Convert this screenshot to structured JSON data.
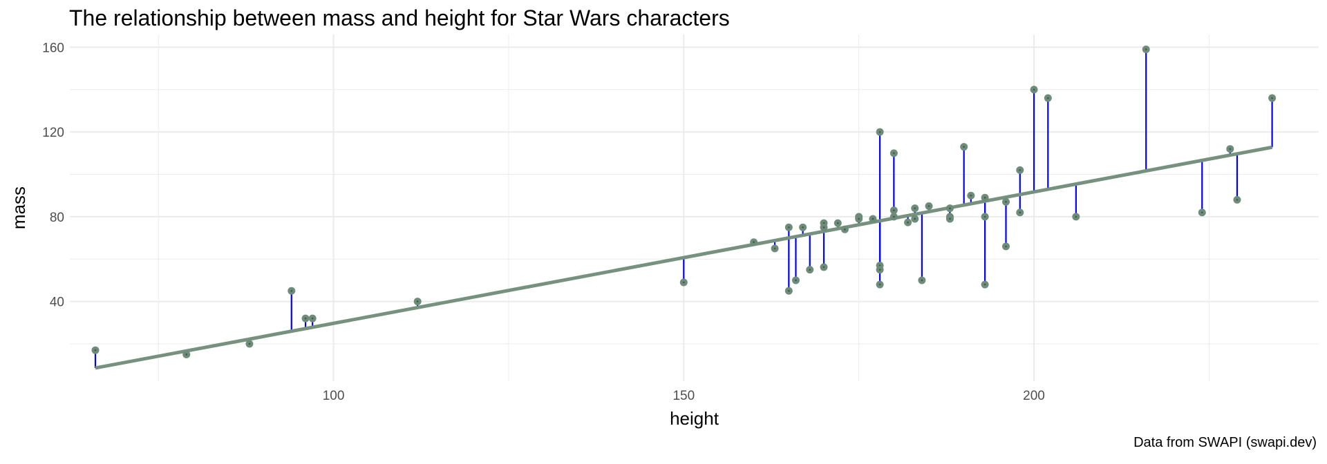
{
  "chart_data": {
    "type": "scatter",
    "title": "The relationship between mass and height for Star Wars characters",
    "caption": "Data from SWAPI (swapi.dev)",
    "xlabel": "height",
    "ylabel": "mass",
    "xlim": [
      62.35,
      240.65
    ],
    "ylim": [
      2.4,
      166
    ],
    "x_ticks": [
      100,
      150,
      200
    ],
    "y_ticks": [
      40,
      80,
      120,
      160
    ],
    "grid": true,
    "colors": {
      "point": "#6e8c7a",
      "point_center": "#4a5a50",
      "fit_line": "#76927f",
      "residual": "#0000ff"
    },
    "fit_line": {
      "x": [
        66,
        234
      ],
      "y": [
        8.6,
        112.8
      ]
    },
    "points": [
      {
        "x": 66,
        "y": 17
      },
      {
        "x": 79,
        "y": 15
      },
      {
        "x": 88,
        "y": 20
      },
      {
        "x": 94,
        "y": 45
      },
      {
        "x": 96,
        "y": 32
      },
      {
        "x": 97,
        "y": 32
      },
      {
        "x": 112,
        "y": 40
      },
      {
        "x": 150,
        "y": 49
      },
      {
        "x": 160,
        "y": 68
      },
      {
        "x": 163,
        "y": 65
      },
      {
        "x": 165,
        "y": 75
      },
      {
        "x": 165,
        "y": 45
      },
      {
        "x": 166,
        "y": 50
      },
      {
        "x": 167,
        "y": 75
      },
      {
        "x": 168,
        "y": 55
      },
      {
        "x": 170,
        "y": 77
      },
      {
        "x": 170,
        "y": 75
      },
      {
        "x": 170,
        "y": 56.2
      },
      {
        "x": 172,
        "y": 77
      },
      {
        "x": 173,
        "y": 74
      },
      {
        "x": 175,
        "y": 80
      },
      {
        "x": 175,
        "y": 79
      },
      {
        "x": 177,
        "y": 79
      },
      {
        "x": 178,
        "y": 120
      },
      {
        "x": 178,
        "y": 57
      },
      {
        "x": 178,
        "y": 55
      },
      {
        "x": 178,
        "y": 48
      },
      {
        "x": 180,
        "y": 110
      },
      {
        "x": 180,
        "y": 83
      },
      {
        "x": 180,
        "y": 80
      },
      {
        "x": 182,
        "y": 77.3
      },
      {
        "x": 183,
        "y": 84
      },
      {
        "x": 183,
        "y": 79
      },
      {
        "x": 184,
        "y": 50
      },
      {
        "x": 185,
        "y": 85
      },
      {
        "x": 188,
        "y": 84
      },
      {
        "x": 188,
        "y": 80
      },
      {
        "x": 188,
        "y": 79
      },
      {
        "x": 190,
        "y": 113
      },
      {
        "x": 191,
        "y": 90
      },
      {
        "x": 193,
        "y": 89
      },
      {
        "x": 193,
        "y": 80
      },
      {
        "x": 193,
        "y": 48
      },
      {
        "x": 196,
        "y": 87
      },
      {
        "x": 196,
        "y": 66
      },
      {
        "x": 198,
        "y": 102
      },
      {
        "x": 198,
        "y": 82
      },
      {
        "x": 200,
        "y": 140
      },
      {
        "x": 202,
        "y": 136
      },
      {
        "x": 206,
        "y": 80
      },
      {
        "x": 216,
        "y": 159
      },
      {
        "x": 224,
        "y": 82
      },
      {
        "x": 228,
        "y": 112
      },
      {
        "x": 229,
        "y": 88
      },
      {
        "x": 234,
        "y": 136
      }
    ]
  }
}
